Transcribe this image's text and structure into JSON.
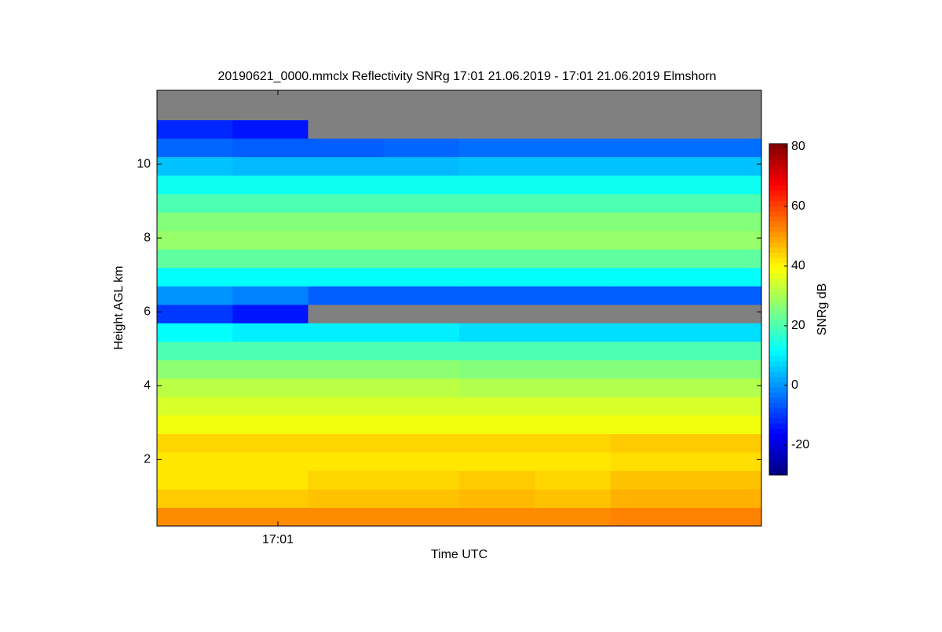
{
  "chart_data": {
    "type": "heatmap",
    "title": "20190621_0000.mmclx Reflectivity SNRg   17:01 21.06.2019 - 17:01 21.06.2019 Elmshorn",
    "x_label": "Time UTC",
    "y_label": "Height AGL km",
    "colorbar_label": "SNRg dB",
    "colormap": "jet",
    "nodata_color": "#808080",
    "xlim": [
      1020.8,
      1021.8
    ],
    "xticks": [
      {
        "value": 1021,
        "label": "17:01"
      }
    ],
    "ylim": [
      0.2,
      12.0
    ],
    "yticks": [
      2,
      4,
      6,
      8,
      10
    ],
    "clim": [
      -30,
      81
    ],
    "cticks": [
      -20,
      0,
      20,
      40,
      60,
      80
    ],
    "x_edges": [
      1020.8,
      1020.925,
      1021.05,
      1021.175,
      1021.3,
      1021.425,
      1021.55,
      1021.675,
      1021.8
    ],
    "y_edges": [
      0.2,
      0.7,
      1.2,
      1.7,
      2.2,
      2.7,
      3.2,
      3.7,
      4.2,
      4.7,
      5.2,
      5.7,
      6.2,
      6.7,
      7.2,
      7.7,
      8.2,
      8.7,
      9.2,
      9.7,
      10.2,
      10.7,
      11.2,
      11.7,
      12.0
    ],
    "z": [
      [
        52,
        52,
        52,
        52,
        52,
        52,
        53,
        53
      ],
      [
        45,
        45,
        46,
        46,
        47,
        46,
        48,
        48
      ],
      [
        42,
        42,
        44,
        44,
        45,
        44,
        46,
        46
      ],
      [
        42,
        42,
        42,
        42,
        42,
        42,
        43,
        43
      ],
      [
        44,
        44,
        44,
        44,
        44,
        44,
        45,
        45
      ],
      [
        38,
        38,
        38,
        38,
        38,
        38,
        38,
        38
      ],
      [
        35,
        35,
        35,
        35,
        35,
        35,
        35,
        35
      ],
      [
        32,
        32,
        32,
        32,
        31,
        31,
        31,
        31
      ],
      [
        27,
        27,
        27,
        27,
        26,
        26,
        26,
        26
      ],
      [
        20,
        20,
        20,
        20,
        20,
        20,
        20,
        20
      ],
      [
        12,
        10,
        10,
        10,
        8,
        8,
        8,
        8
      ],
      [
        -10,
        -14,
        null,
        null,
        null,
        null,
        null,
        null
      ],
      [
        0,
        -2,
        -6,
        -6,
        -6,
        -6,
        -6,
        -6
      ],
      [
        12,
        12,
        12,
        12,
        12,
        12,
        12,
        12
      ],
      [
        22,
        22,
        22,
        22,
        22,
        22,
        22,
        22
      ],
      [
        28,
        28,
        28,
        28,
        28,
        28,
        28,
        28
      ],
      [
        26,
        26,
        26,
        26,
        26,
        26,
        26,
        26
      ],
      [
        20,
        20,
        20,
        20,
        20,
        20,
        20,
        20
      ],
      [
        13,
        13,
        13,
        13,
        13,
        13,
        13,
        13
      ],
      [
        5,
        4,
        4,
        4,
        5,
        5,
        5,
        5
      ],
      [
        -5,
        -6,
        -6,
        -5,
        -4,
        -4,
        -4,
        -4
      ],
      [
        -12,
        -14,
        null,
        null,
        null,
        null,
        null,
        null
      ],
      [
        null,
        null,
        null,
        null,
        null,
        null,
        null,
        null
      ],
      [
        null,
        null,
        null,
        null,
        null,
        null,
        null,
        null
      ]
    ]
  }
}
